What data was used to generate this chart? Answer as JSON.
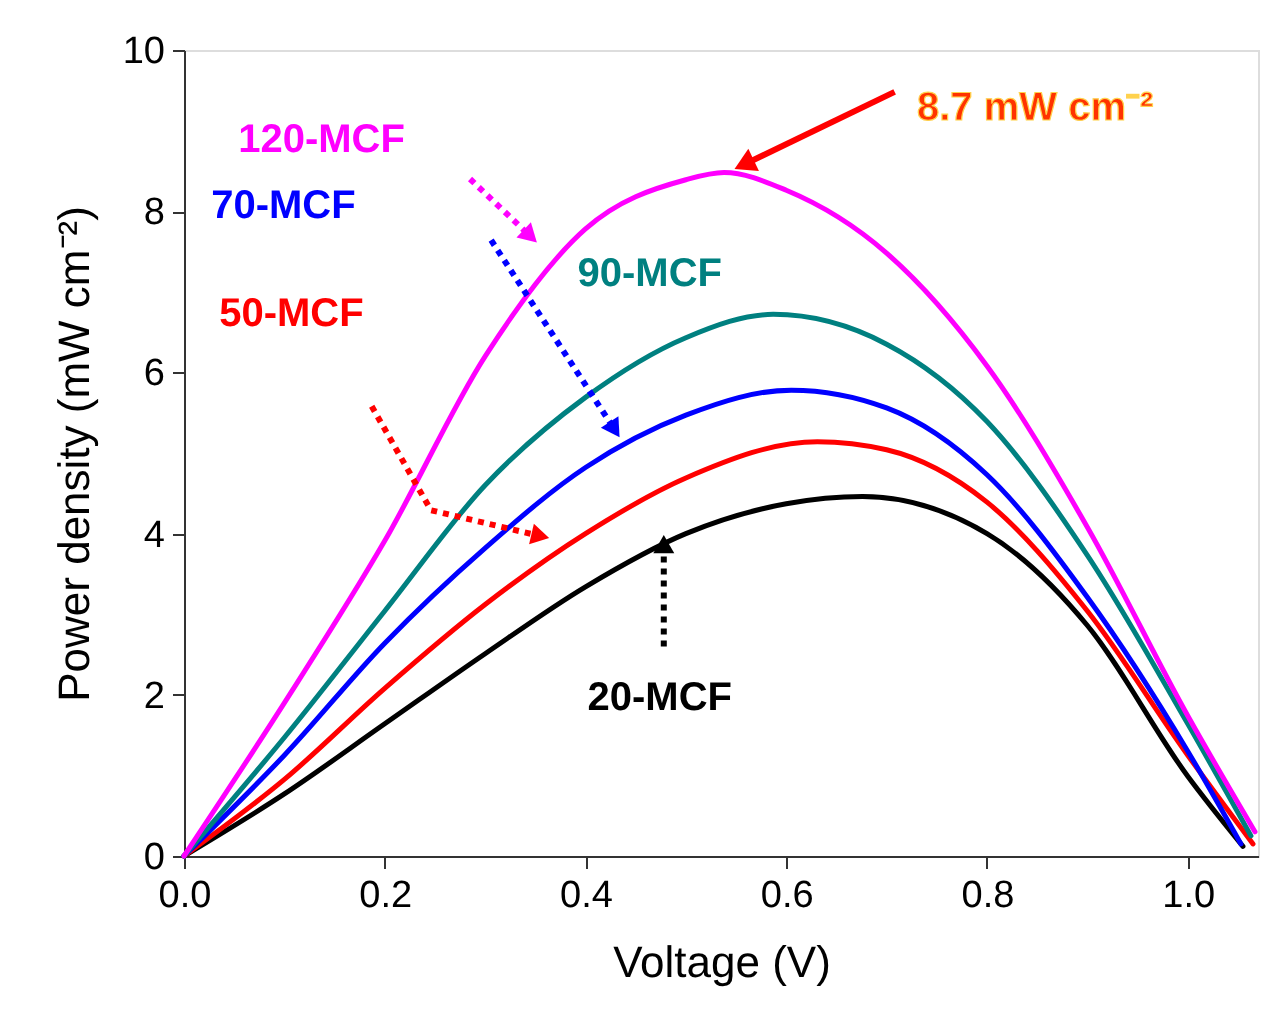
{
  "chart_data": {
    "type": "line",
    "xlabel": "Voltage (V)",
    "ylabel": "Power density (mW cm⁻²)",
    "xlim": [
      0,
      1.07
    ],
    "xticks": [
      {
        "value": 0,
        "label": "0.0"
      },
      0.2,
      0.4,
      0.6,
      0.8,
      {
        "value": 1,
        "label": "1.0"
      }
    ],
    "ylim": [
      0,
      10
    ],
    "yticks": [
      0,
      2,
      4,
      6,
      8,
      10
    ],
    "grid": false,
    "legend": false,
    "marker": "none",
    "line_style": "solid",
    "series": [
      {
        "name": "20-MCF",
        "color": "#000000",
        "x": [
          0,
          0.1,
          0.2,
          0.3,
          0.4,
          0.5,
          0.6,
          0.676,
          0.8,
          0.9,
          1.0,
          1.055
        ],
        "values": [
          0,
          0.77,
          1.64,
          2.51,
          3.34,
          4.0,
          4.37,
          4.46,
          4.0,
          2.86,
          0.99,
          0.12
        ]
      },
      {
        "name": "50-MCF",
        "color": "#ff0000",
        "x": [
          0,
          0.1,
          0.2,
          0.3,
          0.4,
          0.5,
          0.631,
          0.7,
          0.8,
          0.9,
          1.0,
          1.065
        ],
        "values": [
          0,
          0.95,
          2.08,
          3.12,
          4.0,
          4.69,
          5.14,
          5.04,
          4.39,
          3.04,
          1.25,
          0.15
        ]
      },
      {
        "name": "70-MCF",
        "color": "#0000ff",
        "x": [
          0,
          0.1,
          0.2,
          0.3,
          0.4,
          0.5,
          0.605,
          0.7,
          0.8,
          0.9,
          1.0,
          1.053
        ],
        "values": [
          0,
          1.25,
          2.64,
          3.82,
          4.82,
          5.47,
          5.78,
          5.56,
          4.73,
          3.21,
          1.3,
          0.15
        ]
      },
      {
        "name": "90-MCF",
        "color": "#008080",
        "x": [
          0,
          0.1,
          0.2,
          0.3,
          0.4,
          0.5,
          0.587,
          0.7,
          0.8,
          0.9,
          1.0,
          1.063
        ],
        "values": [
          0,
          1.47,
          3.04,
          4.6,
          5.69,
          6.43,
          6.72,
          6.35,
          5.39,
          3.73,
          1.64,
          0.25
        ]
      },
      {
        "name": "120-MCF",
        "color": "#ff00ff",
        "x": [
          0,
          0.1,
          0.2,
          0.3,
          0.4,
          0.5,
          0.538,
          0.6,
          0.7,
          0.8,
          0.9,
          1.0,
          1.067
        ],
        "values": [
          0,
          1.9,
          3.91,
          6.2,
          7.78,
          8.39,
          8.48,
          8.26,
          7.48,
          6.08,
          4.08,
          1.74,
          0.3
        ]
      }
    ],
    "annotations": [
      "8.7 mW cm⁻²"
    ]
  }
}
